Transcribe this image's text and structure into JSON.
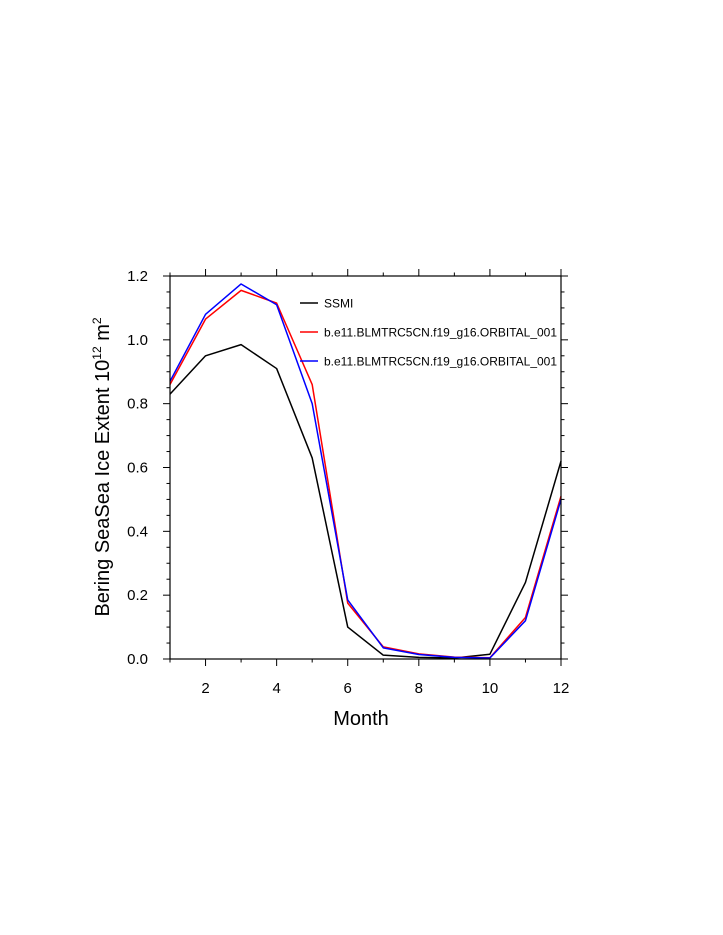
{
  "chart_data": {
    "type": "line",
    "title": "",
    "xlabel": "Month",
    "ylabel": {
      "base": "Bering SeaSea Ice Extent 10",
      "exponent": "12",
      "unit": " m",
      "unit_exponent": "2"
    },
    "xlim": [
      1,
      12
    ],
    "ylim": [
      0,
      1.2
    ],
    "xticks": [
      2,
      4,
      6,
      8,
      10,
      12
    ],
    "xtick_labels": [
      "2",
      "4",
      "6",
      "8",
      "10",
      "12"
    ],
    "yticks": [
      0,
      0.2,
      0.4,
      0.6,
      0.8,
      1.0,
      1.2
    ],
    "ytick_labels": [
      "0.0",
      "0.2",
      "0.4",
      "0.6",
      "0.8",
      "1.0",
      "1.2"
    ],
    "grid": false,
    "legend_position": "top-right",
    "x": [
      1,
      2,
      3,
      4,
      5,
      6,
      7,
      8,
      9,
      10,
      11,
      12
    ],
    "series": [
      {
        "name": "SSMI",
        "color": "#000000",
        "values": [
          0.83,
          0.95,
          0.985,
          0.91,
          0.63,
          0.1,
          0.012,
          0.005,
          0.003,
          0.015,
          0.24,
          0.62
        ]
      },
      {
        "name": "b.e11.BLMTRC5CN.f19_g16.ORBITAL_001",
        "color": "#ff0000",
        "values": [
          0.86,
          1.065,
          1.155,
          1.115,
          0.86,
          0.175,
          0.038,
          0.016,
          0.006,
          0.004,
          0.13,
          0.51
        ]
      },
      {
        "name": "b.e11.BLMTRC5CN.f19_g16.ORBITAL_001",
        "color": "#0000ff",
        "values": [
          0.87,
          1.08,
          1.175,
          1.11,
          0.8,
          0.185,
          0.035,
          0.014,
          0.005,
          0.003,
          0.12,
          0.5
        ]
      }
    ]
  }
}
